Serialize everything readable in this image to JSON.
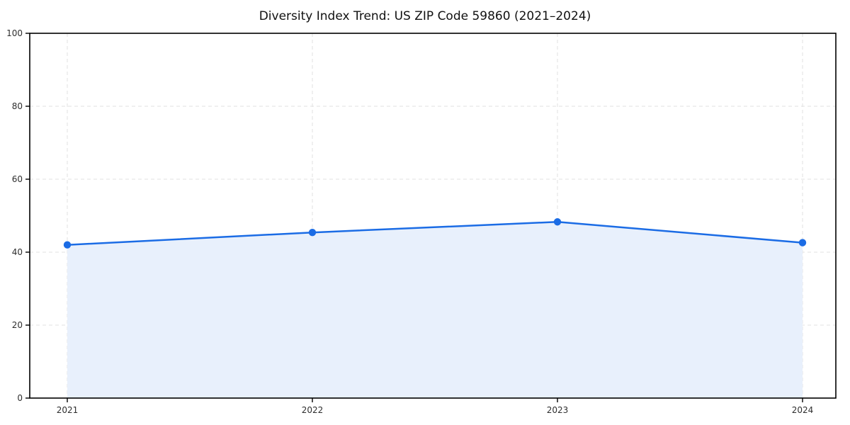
{
  "page": {
    "background": "#ffffff"
  },
  "chart_data": {
    "type": "line",
    "title": "Diversity Index Trend: US ZIP Code 59860 (2021–2024)",
    "x": [
      "2021",
      "2022",
      "2023",
      "2024"
    ],
    "series": [
      {
        "name": "Diversity Index",
        "values": [
          42.0,
          45.4,
          48.3,
          42.6
        ]
      }
    ],
    "xlabel": "",
    "ylabel": "",
    "ylim": [
      0,
      100
    ],
    "yticks": [
      0,
      20,
      40,
      60,
      80,
      100
    ],
    "grid": "dashed-both-axes",
    "legend": "none",
    "area_fill": true,
    "marker": "circle",
    "colors": {
      "line": "#1b6ce5",
      "marker": "#1b6ce5",
      "area": "#e8f0fc",
      "grid": "#e2e2e2",
      "spine": "#000000",
      "tick_label": "#2e2e2e",
      "title": "#111111"
    }
  }
}
